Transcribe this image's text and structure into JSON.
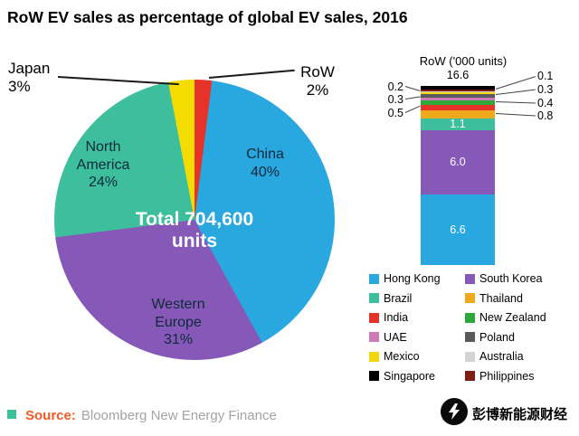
{
  "title": "RoW EV sales as percentage of global EV sales, 2016",
  "chart_data": [
    {
      "type": "pie",
      "title": "RoW EV sales as percentage of global EV sales, 2016",
      "center_label": "Total 704,600 units",
      "total_units": 704600,
      "start_angle_deg": 0,
      "direction": "clockwise",
      "slices": [
        {
          "label": "RoW",
          "pct": 2,
          "pct_label": "2%",
          "color": "#e6332a"
        },
        {
          "label": "China",
          "pct": 40,
          "pct_label": "40%",
          "color": "#29a8e0"
        },
        {
          "label": "Western Europe",
          "pct": 31,
          "pct_label": "31%",
          "color": "#8659b8"
        },
        {
          "label": "North America",
          "pct": 24,
          "pct_label": "24%",
          "color": "#3dbf9e"
        },
        {
          "label": "Japan",
          "pct": 3,
          "pct_label": "3%",
          "color": "#f5dc00"
        }
      ]
    },
    {
      "type": "stacked-bar",
      "title": "RoW ('000 units)",
      "total": 16.6,
      "total_label": "16.6",
      "segments_bottom_to_top": true,
      "segments": [
        {
          "name": "Hong Kong",
          "value": 6.6,
          "color": "#29a8e0",
          "inline_label": "6.6"
        },
        {
          "name": "South Korea",
          "value": 6.0,
          "color": "#8659b8",
          "inline_label": "6.0"
        },
        {
          "name": "Brazil",
          "value": 1.1,
          "color": "#3dbf9e",
          "inline_label": "1.1"
        },
        {
          "name": "Thailand",
          "value": 0.8,
          "color": "#efa91d"
        },
        {
          "name": "India",
          "value": 0.5,
          "color": "#e6332a"
        },
        {
          "name": "New Zealand",
          "value": 0.4,
          "color": "#2fa83b"
        },
        {
          "name": "UAE",
          "value": 0.3,
          "color": "#ce79b8"
        },
        {
          "name": "Poland",
          "value": 0.3,
          "color": "#595a5c"
        },
        {
          "name": "Mexico",
          "value": 0.2,
          "color": "#f2d70e"
        },
        {
          "name": "Australia",
          "value": 0.1,
          "color": "#d2d4d3"
        },
        {
          "name": "Philippines",
          "value": 0.1,
          "color": "#7e1d12"
        },
        {
          "name": "Singapore",
          "value": 0.2,
          "color": "#000000"
        }
      ],
      "callouts_left": [
        "0.2",
        "0.3",
        "0.5"
      ],
      "callouts_right": [
        "0.1",
        "0.3",
        "0.4",
        "0.8"
      ]
    }
  ],
  "legend": {
    "items": [
      {
        "label": "Hong Kong",
        "color": "#29a8e0"
      },
      {
        "label": "South Korea",
        "color": "#8659b8"
      },
      {
        "label": "Brazil",
        "color": "#3dbf9e"
      },
      {
        "label": "Thailand",
        "color": "#efa91d"
      },
      {
        "label": "India",
        "color": "#e6332a"
      },
      {
        "label": "New Zealand",
        "color": "#2fa83b"
      },
      {
        "label": "UAE",
        "color": "#ce79b8"
      },
      {
        "label": "Poland",
        "color": "#595a5c"
      },
      {
        "label": "Mexico",
        "color": "#f2d70e"
      },
      {
        "label": "Australia",
        "color": "#d2d4d3"
      },
      {
        "label": "Singapore",
        "color": "#000000"
      },
      {
        "label": "Philippines",
        "color": "#7e1d12"
      }
    ]
  },
  "footer": {
    "source_label": "Source:",
    "source_text": "Bloomberg New Energy Finance",
    "logo_text": "彭博新能源财经"
  }
}
